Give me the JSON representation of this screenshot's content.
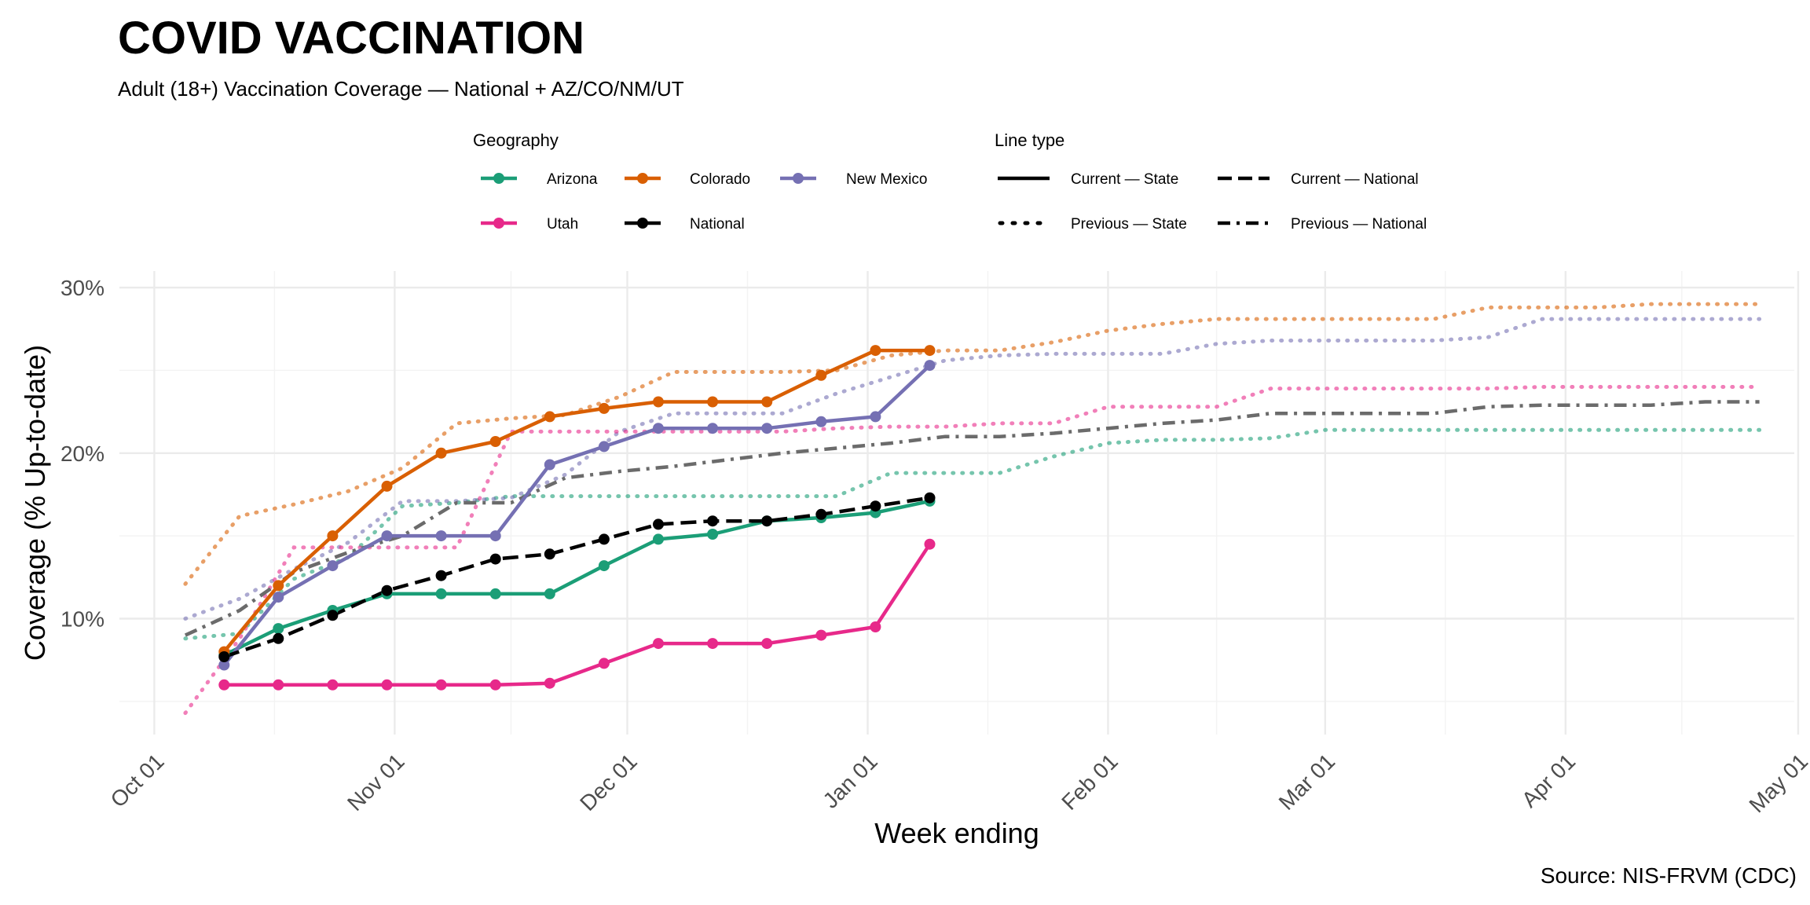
{
  "chart_data": {
    "type": "line",
    "title": "COVID VACCINATION",
    "subtitle": "Adult (18+) Vaccination Coverage — National + AZ/CO/NM/UT",
    "caption": "Source: NIS-FRVM (CDC)",
    "xlabel": "Week ending",
    "ylabel": "Coverage (% Up-to-date)",
    "ylim": [
      3.0,
      31.0
    ],
    "y_ticks": [
      10,
      20,
      30
    ],
    "y_tick_labels": [
      "10%",
      "20%",
      "30%"
    ],
    "y_minor_ticks": [
      5,
      15,
      25
    ],
    "x_range_days": [
      -4.5,
      211.5
    ],
    "x_ticks_days": [
      0,
      31,
      61,
      92,
      123,
      151,
      182,
      212
    ],
    "x_tick_labels": [
      "Oct 01",
      "Nov 01",
      "Dec 01",
      "Jan 01",
      "Feb 01",
      "Mar 01",
      "Apr 01",
      "May 01"
    ],
    "x_minor_days": [
      15.5,
      46,
      76.5,
      107.5,
      137,
      166.5,
      197
    ],
    "x_note": "x values are days since Oct 01",
    "legend": {
      "geography_title": "Geography",
      "linetype_title": "Line type",
      "geography_items": [
        "Arizona",
        "Colorado",
        "New Mexico",
        "Utah",
        "National"
      ],
      "linetype_items": [
        "Current — State",
        "Current — National",
        "Previous — State",
        "Previous — National"
      ],
      "placement": "top"
    },
    "colors": {
      "Arizona": "#1b9e77",
      "Colorado": "#d95f02",
      "New Mexico": "#7570b3",
      "Utah": "#e7298a",
      "National": "#000000",
      "Previous National": "#6b6b6b"
    },
    "series": [
      {
        "name": "Arizona",
        "period": "previous",
        "x": [
          4,
          11,
          18,
          25,
          32,
          39,
          46,
          53,
          60,
          67,
          74,
          81,
          88,
          95,
          102,
          109,
          116,
          123,
          130,
          137,
          144,
          151,
          158,
          165,
          172,
          179,
          186,
          193,
          200,
          207
        ],
        "values": [
          8.8,
          9.1,
          12.4,
          13.7,
          16.8,
          17.0,
          17.4,
          17.4,
          17.4,
          17.4,
          17.4,
          17.4,
          17.4,
          18.8,
          18.8,
          18.8,
          19.8,
          20.6,
          20.8,
          20.8,
          20.9,
          21.4,
          21.4,
          21.4,
          21.4,
          21.4,
          21.4,
          21.4,
          21.4,
          21.4
        ]
      },
      {
        "name": "Colorado",
        "period": "previous",
        "x": [
          4,
          11,
          18,
          25,
          32,
          39,
          46,
          53,
          60,
          67,
          74,
          81,
          88,
          95,
          102,
          109,
          116,
          123,
          130,
          137,
          144,
          151,
          158,
          165,
          172,
          179,
          186,
          193,
          200,
          207
        ],
        "values": [
          12.1,
          16.2,
          16.9,
          17.7,
          19.1,
          21.8,
          22.1,
          22.3,
          23.4,
          24.9,
          24.9,
          24.9,
          25.0,
          25.9,
          26.2,
          26.2,
          26.7,
          27.4,
          27.8,
          28.1,
          28.1,
          28.1,
          28.1,
          28.1,
          28.8,
          28.8,
          28.8,
          29.0,
          29.0,
          29.0
        ]
      },
      {
        "name": "New Mexico",
        "period": "previous",
        "x": [
          4,
          11,
          18,
          25,
          32,
          39,
          46,
          53,
          60,
          67,
          74,
          81,
          88,
          95,
          102,
          109,
          116,
          123,
          130,
          137,
          144,
          151,
          158,
          165,
          172,
          179,
          186,
          193,
          200,
          207
        ],
        "values": [
          10.0,
          11.2,
          13.0,
          14.6,
          17.1,
          17.1,
          17.3,
          18.7,
          21.3,
          22.4,
          22.4,
          22.4,
          23.6,
          24.6,
          25.6,
          25.9,
          26.0,
          26.0,
          26.0,
          26.6,
          26.8,
          26.8,
          26.8,
          26.8,
          27.0,
          28.1,
          28.1,
          28.1,
          28.1,
          28.1
        ]
      },
      {
        "name": "Utah",
        "period": "previous",
        "x": [
          4,
          11,
          18,
          25,
          32,
          39,
          46,
          53,
          60,
          67,
          74,
          81,
          88,
          95,
          102,
          109,
          116,
          123,
          130,
          137,
          144,
          151,
          158,
          165,
          172,
          179,
          186,
          193,
          200,
          207
        ],
        "values": [
          4.3,
          8.8,
          14.3,
          14.3,
          14.3,
          14.3,
          21.3,
          21.3,
          21.3,
          21.3,
          21.3,
          21.3,
          21.5,
          21.6,
          21.6,
          21.8,
          21.8,
          22.8,
          22.8,
          22.8,
          23.9,
          23.9,
          23.9,
          23.9,
          23.9,
          24.0,
          24.0,
          24.0,
          24.0,
          24.0
        ]
      },
      {
        "name": "National",
        "period": "previous",
        "x": [
          4,
          11,
          18,
          25,
          32,
          39,
          46,
          53,
          60,
          67,
          74,
          81,
          88,
          95,
          102,
          109,
          116,
          123,
          130,
          137,
          144,
          151,
          158,
          165,
          172,
          179,
          186,
          193,
          200,
          207
        ],
        "values": [
          9.0,
          10.5,
          12.8,
          14.0,
          15.0,
          17.0,
          17.0,
          18.5,
          18.9,
          19.2,
          19.6,
          20.0,
          20.3,
          20.6,
          21.0,
          21.0,
          21.2,
          21.5,
          21.8,
          22.0,
          22.4,
          22.4,
          22.4,
          22.4,
          22.8,
          22.9,
          22.9,
          22.9,
          23.1,
          23.1
        ]
      },
      {
        "name": "Arizona",
        "period": "current",
        "x": [
          9,
          16,
          23,
          30,
          37,
          44,
          51,
          58,
          65,
          72,
          79,
          86,
          93,
          100
        ],
        "values": [
          7.8,
          9.4,
          10.5,
          11.5,
          11.5,
          11.5,
          11.5,
          13.2,
          14.8,
          15.1,
          15.9,
          16.1,
          16.4,
          17.1
        ]
      },
      {
        "name": "Colorado",
        "period": "current",
        "x": [
          9,
          16,
          23,
          30,
          37,
          44,
          51,
          58,
          65,
          72,
          79,
          86,
          93,
          100
        ],
        "values": [
          8.0,
          12.0,
          15.0,
          18.0,
          20.0,
          20.7,
          22.2,
          22.7,
          23.1,
          23.1,
          23.1,
          24.7,
          26.2,
          26.2
        ]
      },
      {
        "name": "New Mexico",
        "period": "current",
        "x": [
          9,
          16,
          23,
          30,
          37,
          44,
          51,
          58,
          65,
          72,
          79,
          86,
          93,
          100
        ],
        "values": [
          7.2,
          11.3,
          13.2,
          15.0,
          15.0,
          15.0,
          19.3,
          20.4,
          21.5,
          21.5,
          21.5,
          21.9,
          22.2,
          25.3
        ]
      },
      {
        "name": "Utah",
        "period": "current",
        "x": [
          9,
          16,
          23,
          30,
          37,
          44,
          51,
          58,
          65,
          72,
          79,
          86,
          93,
          100
        ],
        "values": [
          6.0,
          6.0,
          6.0,
          6.0,
          6.0,
          6.0,
          6.1,
          7.3,
          8.5,
          8.5,
          8.5,
          9.0,
          9.5,
          14.5
        ]
      },
      {
        "name": "National",
        "period": "current",
        "x": [
          9,
          16,
          23,
          30,
          37,
          44,
          51,
          58,
          65,
          72,
          79,
          86,
          93,
          100
        ],
        "values": [
          7.7,
          8.8,
          10.2,
          11.7,
          12.6,
          13.6,
          13.9,
          14.8,
          15.7,
          15.9,
          15.9,
          16.3,
          16.8,
          17.3
        ]
      }
    ]
  }
}
